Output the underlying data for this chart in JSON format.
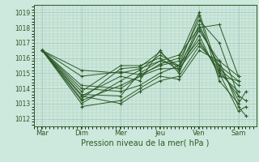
{
  "xlabel": "Pression niveau de la mer( hPa )",
  "bg_color": "#cde8dc",
  "grid_color": "#a8ccbe",
  "line_color": "#2d5a27",
  "ylim": [
    1011.5,
    1019.5
  ],
  "xlim": [
    0,
    210
  ],
  "day_labels": [
    "Mar",
    "Dim",
    "Mer",
    "Jeu",
    "Ven",
    "Sam"
  ],
  "day_positions": [
    8,
    45,
    82,
    119,
    156,
    193
  ],
  "yticks": [
    1012,
    1013,
    1014,
    1015,
    1016,
    1017,
    1018,
    1019
  ],
  "series": [
    [
      8,
      1016.5,
      45,
      1015.2,
      82,
      1015.0,
      100,
      1015.3,
      119,
      1015.8,
      137,
      1016.2,
      156,
      1018.0,
      175,
      1018.2,
      193,
      1014.8
    ],
    [
      8,
      1016.5,
      45,
      1014.8,
      82,
      1015.1,
      100,
      1014.9,
      119,
      1015.5,
      137,
      1015.8,
      156,
      1018.5,
      175,
      1017.0,
      193,
      1013.5,
      200,
      1013.2
    ],
    [
      8,
      1016.5,
      45,
      1013.2,
      82,
      1014.2,
      100,
      1014.8,
      119,
      1015.6,
      137,
      1016.0,
      156,
      1019.0,
      175,
      1015.0,
      193,
      1012.5,
      200,
      1012.8
    ],
    [
      8,
      1016.5,
      45,
      1013.0,
      82,
      1014.5,
      100,
      1015.2,
      119,
      1016.2,
      137,
      1015.5,
      156,
      1018.8,
      175,
      1014.5,
      193,
      1013.0,
      200,
      1013.8
    ],
    [
      8,
      1016.5,
      45,
      1013.3,
      82,
      1015.3,
      100,
      1015.4,
      119,
      1016.4,
      137,
      1015.3,
      156,
      1018.2,
      175,
      1015.3,
      193,
      1014.2
    ],
    [
      8,
      1016.5,
      45,
      1013.5,
      82,
      1014.8,
      100,
      1014.5,
      119,
      1016.5,
      137,
      1015.0,
      156,
      1018.0,
      175,
      1015.5,
      193,
      1014.5
    ],
    [
      8,
      1016.5,
      45,
      1013.6,
      82,
      1013.5,
      100,
      1015.0,
      119,
      1015.8,
      137,
      1015.5,
      156,
      1017.8,
      175,
      1015.8,
      193,
      1014.8
    ],
    [
      8,
      1016.5,
      45,
      1013.8,
      82,
      1015.5,
      100,
      1015.5,
      119,
      1016.0,
      137,
      1015.2,
      156,
      1017.5,
      175,
      1014.8,
      193,
      1014.5
    ],
    [
      8,
      1016.5,
      45,
      1014.0,
      82,
      1013.8,
      100,
      1014.2,
      119,
      1015.0,
      137,
      1015.5,
      156,
      1017.2,
      175,
      1015.0,
      193,
      1013.8
    ],
    [
      8,
      1016.5,
      45,
      1014.2,
      82,
      1014.0,
      100,
      1014.8,
      119,
      1015.3,
      137,
      1015.3,
      156,
      1017.0,
      175,
      1015.2,
      193,
      1013.5
    ],
    [
      45,
      1013.5,
      82,
      1013.0,
      100,
      1013.8,
      119,
      1014.5,
      137,
      1014.8,
      156,
      1016.8,
      175,
      1015.5,
      193,
      1013.2
    ],
    [
      45,
      1012.8,
      82,
      1013.2,
      100,
      1014.0,
      119,
      1014.8,
      137,
      1014.6,
      156,
      1016.5,
      175,
      1015.8,
      193,
      1012.8,
      200,
      1012.2
    ]
  ]
}
